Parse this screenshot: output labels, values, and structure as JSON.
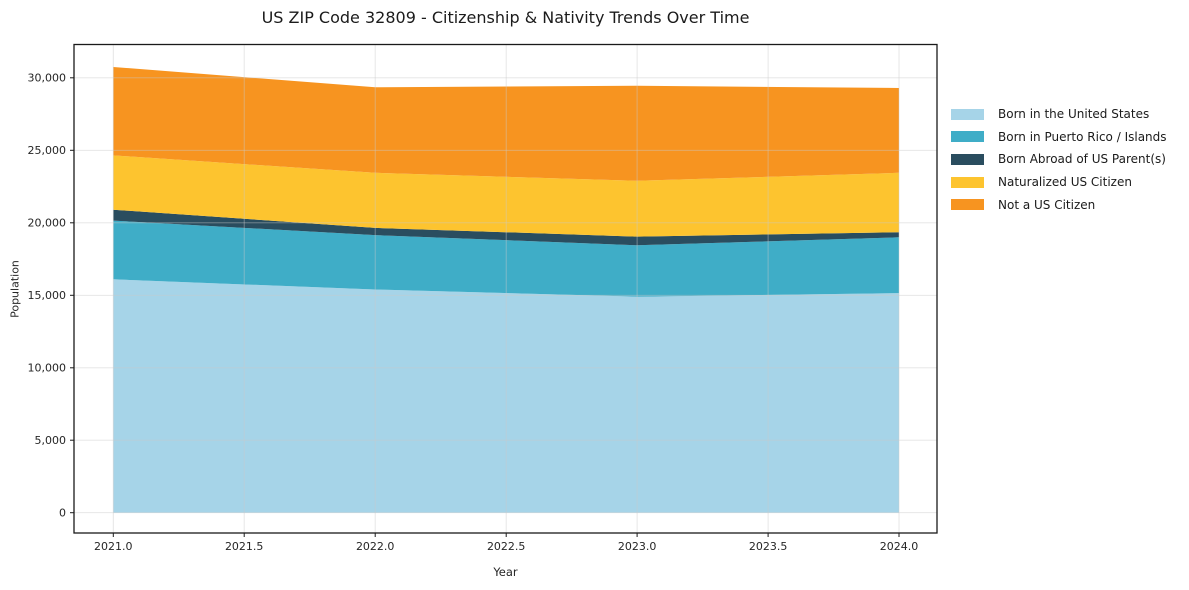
{
  "chart_data": {
    "type": "area",
    "stacked": true,
    "title": "US ZIP Code 32809 - Citizenship & Nativity Trends Over Time",
    "xlabel": "Year",
    "ylabel": "Population",
    "x": [
      2021,
      2022,
      2023,
      2024
    ],
    "series": [
      {
        "name": "Born in the United States",
        "color": "#a6d4e8",
        "values": [
          16100,
          15400,
          14900,
          15150
        ]
      },
      {
        "name": "Born in Puerto Rico / Islands",
        "color": "#3fadc7",
        "values": [
          4050,
          3750,
          3550,
          3850
        ]
      },
      {
        "name": "Born Abroad of US Parent(s)",
        "color": "#2a4d5f",
        "values": [
          750,
          500,
          600,
          350
        ]
      },
      {
        "name": "Naturalized US Citizen",
        "color": "#fdc42f",
        "values": [
          3750,
          3800,
          3850,
          4100
        ]
      },
      {
        "name": "Not a US Citizen",
        "color": "#f79420",
        "values": [
          6100,
          5900,
          6550,
          5850
        ]
      }
    ],
    "totals": [
      30750,
      29350,
      29450,
      29300
    ],
    "xlim": [
      2020.85,
      2024.145
    ],
    "ylim": [
      -1400,
      32300
    ],
    "xticks": [
      2021.0,
      2021.5,
      2022.0,
      2022.5,
      2023.0,
      2023.5,
      2024.0
    ],
    "xtick_labels": [
      "2021.0",
      "2021.5",
      "2022.0",
      "2022.5",
      "2023.0",
      "2023.5",
      "2024.0"
    ],
    "yticks": [
      0,
      5000,
      10000,
      15000,
      20000,
      25000,
      30000
    ],
    "ytick_labels": [
      "0",
      "5,000",
      "10,000",
      "15,000",
      "20,000",
      "25,000",
      "30,000"
    ],
    "grid": true,
    "legend_position": "right-outside",
    "colors": {
      "spine": "#1a1a1a",
      "tick_label": "#262626",
      "gridline": "#c9c9c9",
      "background": "#ffffff"
    }
  }
}
